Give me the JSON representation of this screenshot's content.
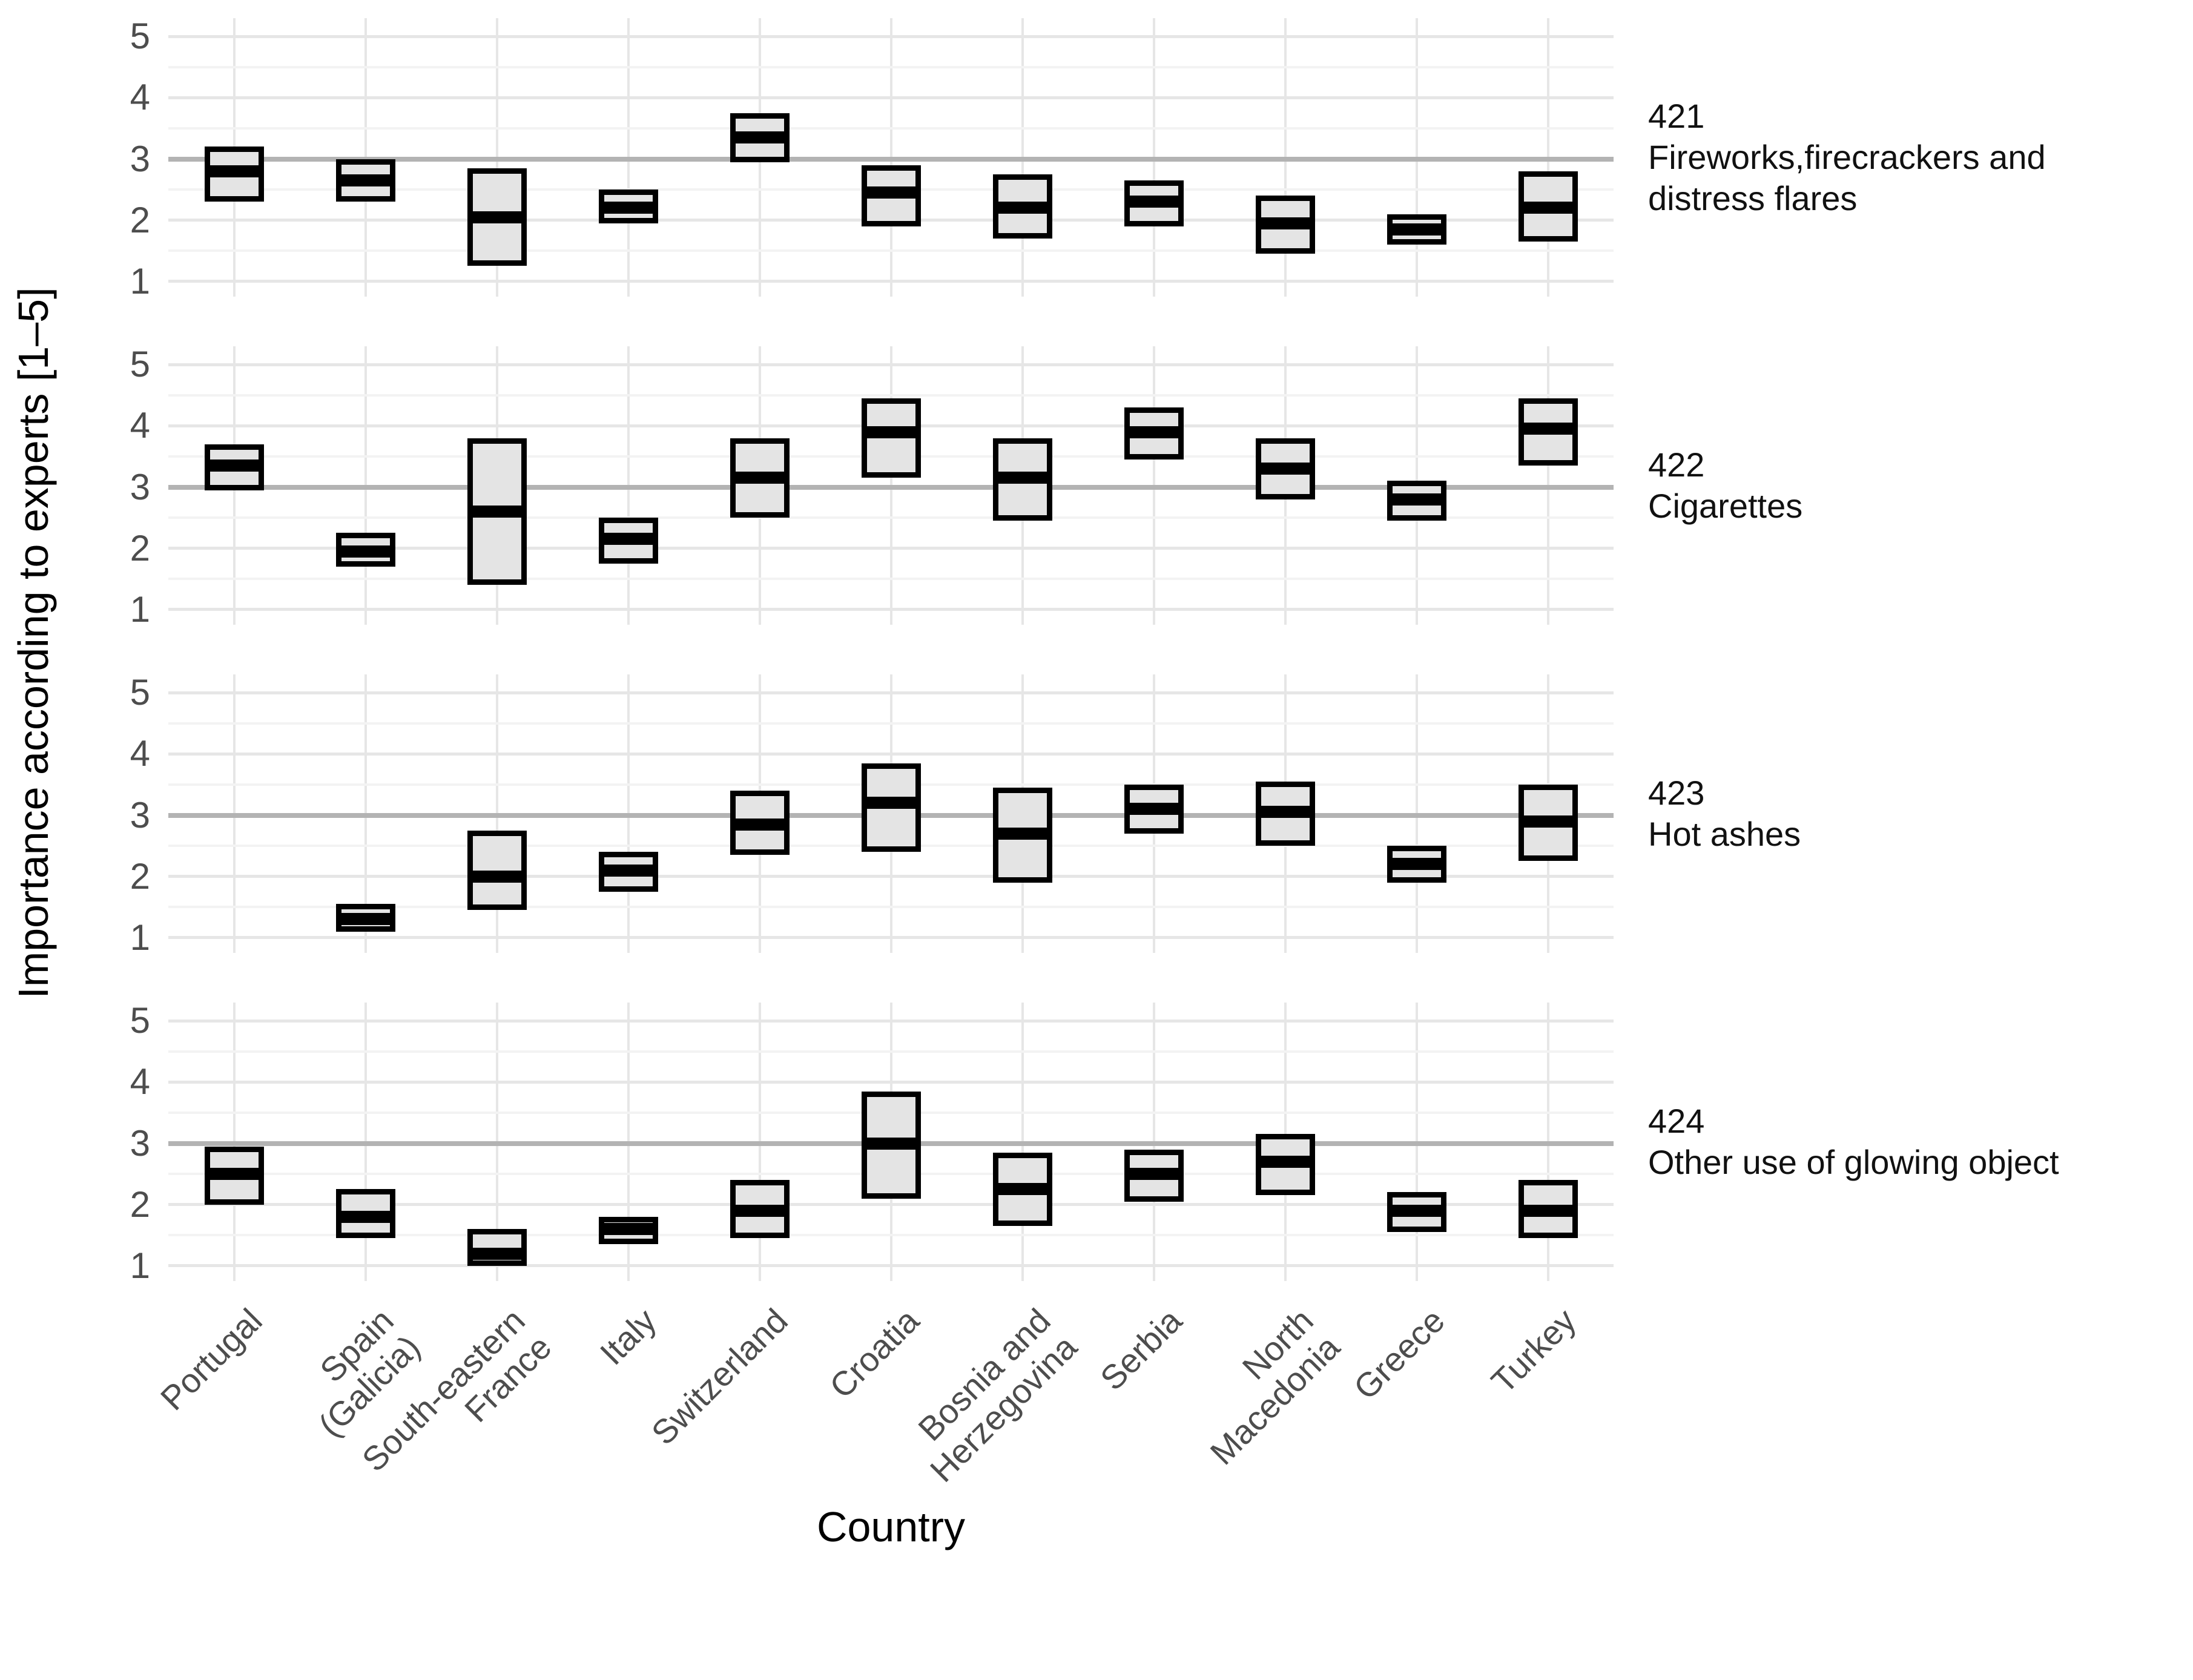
{
  "figure": {
    "y_axis_title": "Importance according to experts [1–5]",
    "x_axis_title": "Country"
  },
  "chart_data": {
    "type": "boxplot",
    "title": "",
    "xlabel": "Country",
    "ylabel": "Importance according to experts [1–5]",
    "ylim": [
      1,
      5
    ],
    "y_ticks": [
      5,
      4,
      3,
      2,
      1
    ],
    "y_minor_ticks": [
      4.5,
      3.5,
      2.5,
      1.5
    ],
    "reference_line": 3,
    "grid": "major+minor",
    "legend": "none",
    "facet_side": "right",
    "categories": [
      "Portugal",
      "Spain (Galicia)",
      "South-eastern France",
      "Italy",
      "Switzerland",
      "Croatia",
      "Bosnia and Herzegovina",
      "Serbia",
      "North Macedonia",
      "Greece",
      "Turkey"
    ],
    "category_label_lines": [
      [
        "Portugal"
      ],
      [
        "Spain",
        "(Galicia)"
      ],
      [
        "South-eastern",
        "France"
      ],
      [
        "Italy"
      ],
      [
        "Switzerland"
      ],
      [
        "Croatia"
      ],
      [
        "Bosnia and",
        "Herzegovina"
      ],
      [
        "Serbia"
      ],
      [
        "North",
        "Macedonia"
      ],
      [
        "Greece"
      ],
      [
        "Turkey"
      ]
    ],
    "panels": [
      {
        "code": "421",
        "label": "Fireworks,firecrackers and distress flares",
        "label_lines": [
          "421",
          "Fireworks,firecrackers and",
          "distress flares"
        ],
        "boxes": [
          {
            "low": 2.3,
            "mid": 2.8,
            "high": 3.2
          },
          {
            "low": 2.3,
            "mid": 2.65,
            "high": 3.0
          },
          {
            "low": 1.25,
            "mid": 2.05,
            "high": 2.85
          },
          {
            "low": 1.95,
            "mid": 2.2,
            "high": 2.5
          },
          {
            "low": 2.95,
            "mid": 3.35,
            "high": 3.75
          },
          {
            "low": 1.9,
            "mid": 2.45,
            "high": 2.9
          },
          {
            "low": 1.7,
            "mid": 2.2,
            "high": 2.75
          },
          {
            "low": 1.9,
            "mid": 2.3,
            "high": 2.65
          },
          {
            "low": 1.45,
            "mid": 1.95,
            "high": 2.4
          },
          {
            "low": 1.6,
            "mid": 1.85,
            "high": 2.1
          },
          {
            "low": 1.65,
            "mid": 2.2,
            "high": 2.8
          }
        ]
      },
      {
        "code": "422",
        "label": "Cigarettes",
        "label_lines": [
          "422",
          "Cigarettes"
        ],
        "boxes": [
          {
            "low": 2.95,
            "mid": 3.35,
            "high": 3.7
          },
          {
            "low": 1.7,
            "mid": 1.95,
            "high": 2.25
          },
          {
            "low": 1.4,
            "mid": 2.6,
            "high": 3.8
          },
          {
            "low": 1.75,
            "mid": 2.15,
            "high": 2.5
          },
          {
            "low": 2.5,
            "mid": 3.15,
            "high": 3.8
          },
          {
            "low": 3.15,
            "mid": 3.9,
            "high": 4.45
          },
          {
            "low": 2.45,
            "mid": 3.15,
            "high": 3.8
          },
          {
            "low": 3.45,
            "mid": 3.9,
            "high": 4.3
          },
          {
            "low": 2.8,
            "mid": 3.3,
            "high": 3.8
          },
          {
            "low": 2.45,
            "mid": 2.8,
            "high": 3.1
          },
          {
            "low": 3.35,
            "mid": 3.95,
            "high": 4.45
          }
        ]
      },
      {
        "code": "423",
        "label": "Hot ashes",
        "label_lines": [
          "423",
          "Hot ashes"
        ],
        "boxes": [
          null,
          {
            "low": 1.1,
            "mid": 1.3,
            "high": 1.55
          },
          {
            "low": 1.45,
            "mid": 2.0,
            "high": 2.75
          },
          {
            "low": 1.75,
            "mid": 2.1,
            "high": 2.4
          },
          {
            "low": 2.35,
            "mid": 2.85,
            "high": 3.4
          },
          {
            "low": 2.4,
            "mid": 3.2,
            "high": 3.85
          },
          {
            "low": 1.9,
            "mid": 2.7,
            "high": 3.45
          },
          {
            "low": 2.7,
            "mid": 3.1,
            "high": 3.5
          },
          {
            "low": 2.5,
            "mid": 3.05,
            "high": 3.55
          },
          {
            "low": 1.9,
            "mid": 2.2,
            "high": 2.5
          },
          {
            "low": 2.25,
            "mid": 2.9,
            "high": 3.5
          }
        ]
      },
      {
        "code": "424",
        "label": "Other use of glowing object",
        "label_lines": [
          "424",
          "Other use of glowing object"
        ],
        "boxes": [
          {
            "low": 2.0,
            "mid": 2.5,
            "high": 2.95
          },
          {
            "low": 1.45,
            "mid": 1.8,
            "high": 2.25
          },
          {
            "low": 1.0,
            "mid": 1.2,
            "high": 1.6
          },
          {
            "low": 1.35,
            "mid": 1.6,
            "high": 1.8
          },
          {
            "low": 1.45,
            "mid": 1.9,
            "high": 2.4
          },
          {
            "low": 2.1,
            "mid": 3.0,
            "high": 3.85
          },
          {
            "low": 1.65,
            "mid": 2.25,
            "high": 2.85
          },
          {
            "low": 2.05,
            "mid": 2.5,
            "high": 2.9
          },
          {
            "low": 2.15,
            "mid": 2.7,
            "high": 3.15
          },
          {
            "low": 1.55,
            "mid": 1.9,
            "high": 2.2
          },
          {
            "low": 1.45,
            "mid": 1.9,
            "high": 2.4
          }
        ]
      }
    ],
    "colors": {
      "box_fill": "#e4e4e4",
      "box_border": "#000000",
      "median": "#000000",
      "grid_major": "#e6e6e6",
      "grid_minor": "#f3f3f3",
      "reference": "#b3b3b3",
      "tick_text": "#4d4d4d",
      "facet_text": "#111111",
      "background": "#ffffff"
    }
  }
}
